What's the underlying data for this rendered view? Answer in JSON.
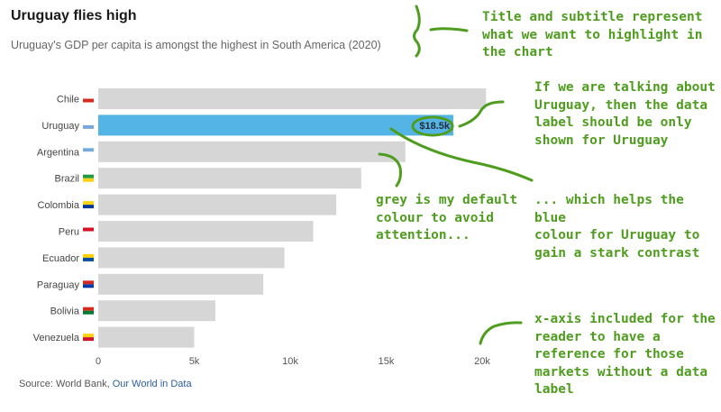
{
  "title": "Uruguay flies high",
  "subtitle": "Uruguay's GDP per capita is amongst the highest in South America (2020)",
  "source": {
    "prefix": "Source: World Bank,",
    "link_label": "Our World in Data"
  },
  "colors": {
    "default_bar": "#d6d6d6",
    "highlight_bar": "#55b4e6",
    "annotation": "#4f9d1e"
  },
  "chart_data": {
    "type": "bar",
    "orientation": "horizontal",
    "categories": [
      "Chile",
      "Uruguay",
      "Argentina",
      "Brazil",
      "Colombia",
      "Peru",
      "Ecuador",
      "Paraguay",
      "Bolivia",
      "Venezuela"
    ],
    "values": [
      20200,
      18500,
      16000,
      13700,
      12400,
      11200,
      9700,
      8600,
      6100,
      5000
    ],
    "highlight": "Uruguay",
    "data_labels": [
      {
        "category": "Uruguay",
        "text": "$18.5k"
      }
    ],
    "xticks": [
      "0",
      "5k",
      "10k",
      "15k",
      "20k"
    ],
    "xtick_values": [
      0,
      5000,
      10000,
      15000,
      20000
    ],
    "xlim": [
      0,
      20000
    ],
    "grid": false
  },
  "annotations": {
    "title_note": "Title and subtitle represent\nwhat we want to highlight in\nthe chart",
    "label_note": "If we are talking about\nUruguay, then the data\nlabel should be only\nshown for Uruguay",
    "grey_note": "grey is my default\ncolour to avoid\nattention...",
    "contrast_note": "... which helps the blue\ncolour for Uruguay to\ngain a stark contrast",
    "axis_note": "x-axis included for the\nreader to have a\nreference for those\nmarkets without a data\nlabel"
  }
}
